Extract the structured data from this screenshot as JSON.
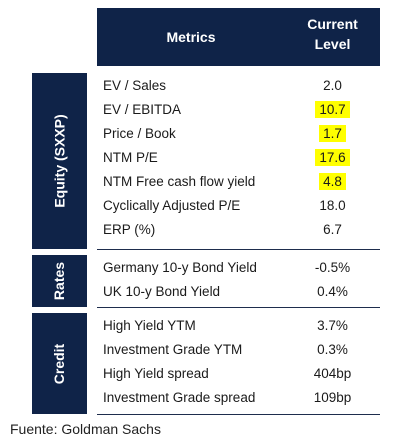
{
  "header": {
    "metrics": "Metrics",
    "level_line1": "Current",
    "level_line2": "Level"
  },
  "sections": [
    {
      "label": "Equity (SXXP)",
      "rows": [
        {
          "metric": "EV / Sales",
          "value": "2.0",
          "highlight": false
        },
        {
          "metric": "EV / EBITDA",
          "value": "10.7",
          "highlight": true
        },
        {
          "metric": "Price / Book",
          "value": "1.7",
          "highlight": true
        },
        {
          "metric": "NTM P/E",
          "value": "17.6",
          "highlight": true
        },
        {
          "metric": "NTM Free cash flow yield",
          "value": "4.8",
          "highlight": true
        },
        {
          "metric": "Cyclically Adjusted P/E",
          "value": "18.0",
          "highlight": false
        },
        {
          "metric": "ERP (%)",
          "value": "6.7",
          "highlight": false
        }
      ]
    },
    {
      "label": "Rates",
      "rows": [
        {
          "metric": "Germany 10-y Bond Yield",
          "value": "-0.5%",
          "highlight": false
        },
        {
          "metric": "UK 10-y Bond Yield",
          "value": "0.4%",
          "highlight": false
        }
      ]
    },
    {
      "label": "Credit",
      "rows": [
        {
          "metric": "High Yield YTM",
          "value": "3.7%",
          "highlight": false
        },
        {
          "metric": "Investment Grade YTM",
          "value": "0.3%",
          "highlight": false
        },
        {
          "metric": "High Yield spread",
          "value": "404bp",
          "highlight": false
        },
        {
          "metric": "Investment Grade spread",
          "value": "109bp",
          "highlight": false
        }
      ]
    }
  ],
  "source": "Fuente: Goldman Sachs",
  "colors": {
    "header_bg": "#0f2348",
    "highlight": "#ffff00"
  }
}
